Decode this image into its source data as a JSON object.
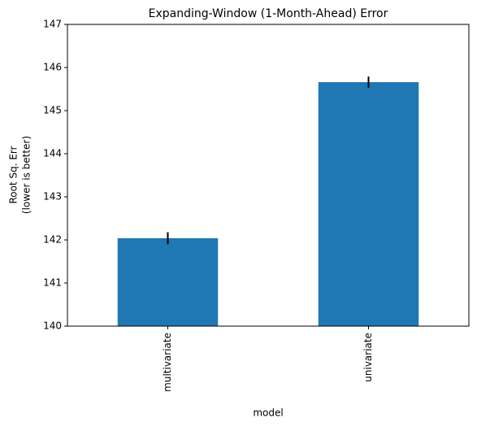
{
  "chart_data": {
    "type": "bar",
    "title": "Expanding-Window (1-Month-Ahead) Error",
    "xlabel": "model",
    "ylabel": [
      "Root Sq. Err",
      "(lower is better)"
    ],
    "categories": [
      "multivariate",
      "univariate"
    ],
    "values": [
      142.04,
      145.66
    ],
    "errors": [
      0.14,
      0.13
    ],
    "color": "#1f77b4",
    "ylim": [
      140,
      147
    ],
    "yticks": [
      140,
      141,
      142,
      143,
      144,
      145,
      146,
      147
    ],
    "grid": false
  }
}
